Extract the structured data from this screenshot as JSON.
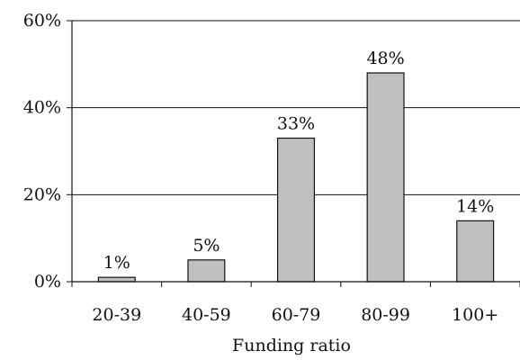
{
  "chart_data": {
    "type": "bar",
    "title": "",
    "xlabel": "Funding ratio",
    "ylabel": "",
    "categories": [
      "20-39",
      "40-59",
      "60-79",
      "80-99",
      "100+"
    ],
    "values": [
      1,
      5,
      33,
      48,
      14
    ],
    "data_labels": [
      "1%",
      "5%",
      "33%",
      "48%",
      "14%"
    ],
    "ylim": [
      0,
      60
    ],
    "y_ticks": [
      0,
      20,
      40,
      60
    ],
    "y_tick_labels": [
      "0%",
      "20%",
      "40%",
      "60%"
    ],
    "grid": true,
    "legend": "none",
    "colors": {
      "bar_fill": "#c0c0c0",
      "bar_stroke": "#111111",
      "grid": "#111111"
    }
  }
}
